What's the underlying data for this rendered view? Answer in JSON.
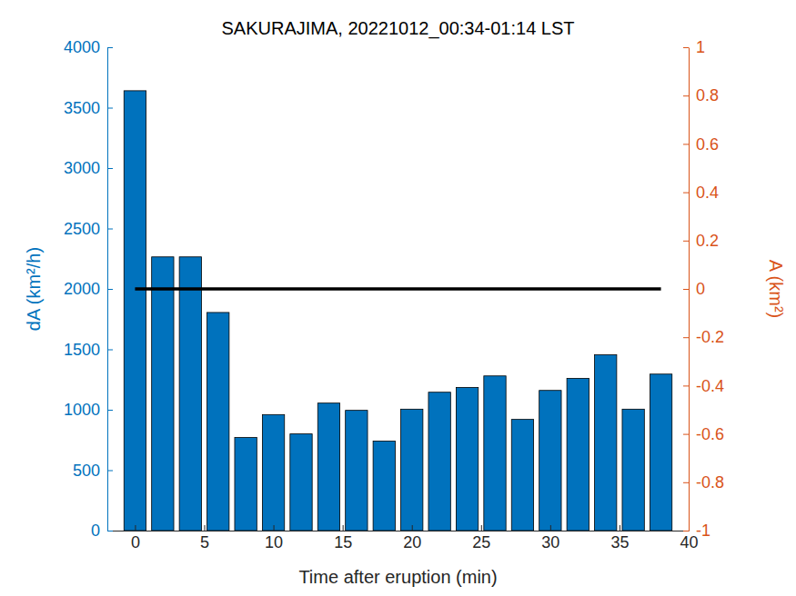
{
  "chart_data": {
    "type": "bar",
    "title": "SAKURAJIMA, 20221012_00:34-01:14 LST",
    "x_label": "Time after eruption (min)",
    "y_label": "dA (km²/h)",
    "y2_label": "A (km²)",
    "x": [
      0,
      2,
      4,
      6,
      8,
      10,
      12,
      14,
      16,
      18,
      20,
      22,
      24,
      26,
      28,
      30,
      32,
      34,
      36,
      38
    ],
    "series": [
      {
        "type": "bar",
        "color": "#0072bd",
        "values": [
          3640,
          2265,
          2265,
          1805,
          770,
          960,
          800,
          1055,
          995,
          740,
          1005,
          1145,
          1185,
          1280,
          920,
          1160,
          1260,
          1455,
          1005,
          1295
        ]
      },
      {
        "type": "line",
        "axis": "y2",
        "color": "#000000",
        "values": [
          0,
          0,
          0,
          0,
          0,
          0,
          0,
          0,
          0,
          0,
          0,
          0,
          0,
          0,
          0,
          0,
          0,
          0,
          0,
          0
        ]
      }
    ],
    "xlim": [
      -2,
      40
    ],
    "xticks": [
      0,
      5,
      10,
      15,
      20,
      25,
      30,
      35,
      40
    ],
    "ylim": [
      0,
      4000
    ],
    "yticks": [
      0,
      500,
      1000,
      1500,
      2000,
      2500,
      3000,
      3500,
      4000
    ],
    "y2lim": [
      -1,
      1
    ],
    "y2ticks": [
      -1,
      -0.8,
      -0.6,
      -0.4,
      -0.2,
      0,
      0.2,
      0.4,
      0.6,
      0.8,
      1
    ]
  }
}
